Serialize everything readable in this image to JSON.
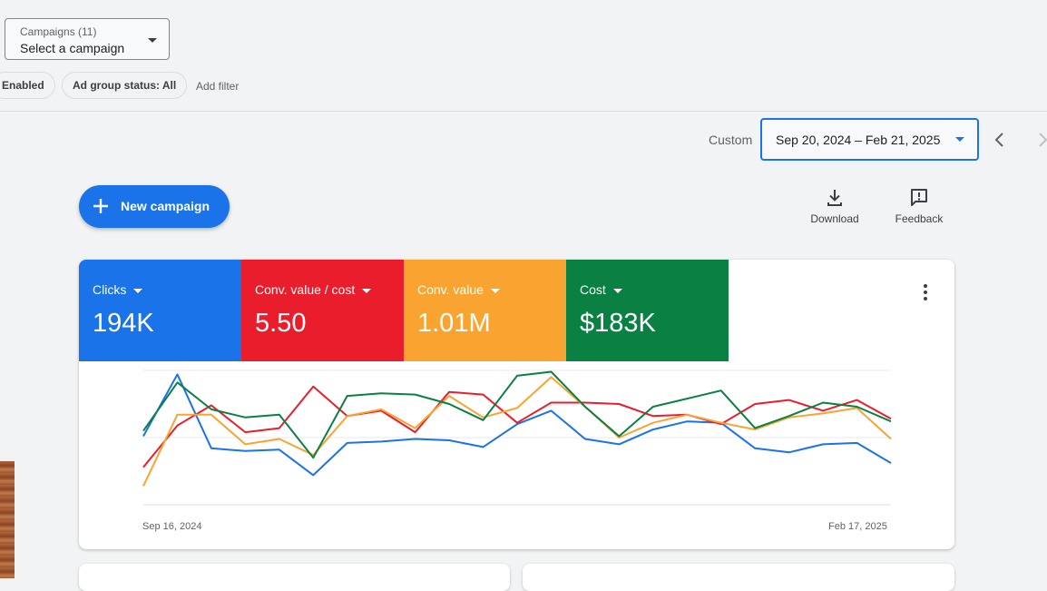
{
  "campaign_select": {
    "caption": "Campaigns (11)",
    "value": "Select a campaign"
  },
  "filters": {
    "status_chip": "Enabled",
    "ad_group_chip": "Ad group status: All",
    "add_filter": "Add filter"
  },
  "date_range": {
    "label": "Custom",
    "value": "Sep 20, 2024 – Feb 21, 2025"
  },
  "toolbar": {
    "new_campaign": "New campaign",
    "download": "Download",
    "feedback": "Feedback"
  },
  "metrics": [
    {
      "name": "Clicks",
      "value": "194K",
      "color": "#1a73e8"
    },
    {
      "name": "Conv. value / cost",
      "value": "5.50",
      "color": "#ea1d2c"
    },
    {
      "name": "Conv. value",
      "value": "1.01M",
      "color": "#f9a431"
    },
    {
      "name": "Cost",
      "value": "$183K",
      "color": "#0b8043"
    }
  ],
  "chart_data": {
    "type": "line",
    "x_start_label": "Sep 16, 2024",
    "x_end_label": "Feb 17, 2025",
    "ylim": [
      0,
      1
    ],
    "grid": true,
    "series": [
      {
        "color": "#1a73e8",
        "values": [
          0.51,
          0.97,
          0.42,
          0.4,
          0.41,
          0.22,
          0.46,
          0.47,
          0.49,
          0.48,
          0.43,
          0.6,
          0.7,
          0.49,
          0.45,
          0.56,
          0.62,
          0.61,
          0.42,
          0.39,
          0.45,
          0.46,
          0.31
        ]
      },
      {
        "color": "#ea1d2c",
        "values": [
          0.28,
          0.59,
          0.74,
          0.54,
          0.57,
          0.88,
          0.66,
          0.7,
          0.54,
          0.84,
          0.82,
          0.61,
          0.76,
          0.76,
          0.75,
          0.66,
          0.67,
          0.6,
          0.75,
          0.78,
          0.7,
          0.78,
          0.64
        ]
      },
      {
        "color": "#f9a431",
        "values": [
          0.14,
          0.67,
          0.67,
          0.45,
          0.49,
          0.37,
          0.66,
          0.71,
          0.57,
          0.81,
          0.65,
          0.72,
          0.95,
          0.73,
          0.5,
          0.61,
          0.67,
          0.61,
          0.56,
          0.65,
          0.68,
          0.72,
          0.49
        ]
      },
      {
        "color": "#0b8043",
        "values": [
          0.55,
          0.91,
          0.71,
          0.65,
          0.67,
          0.35,
          0.81,
          0.83,
          0.82,
          0.75,
          0.63,
          0.96,
          0.99,
          0.73,
          0.51,
          0.73,
          0.79,
          0.85,
          0.57,
          0.66,
          0.76,
          0.73,
          0.62
        ]
      }
    ]
  }
}
